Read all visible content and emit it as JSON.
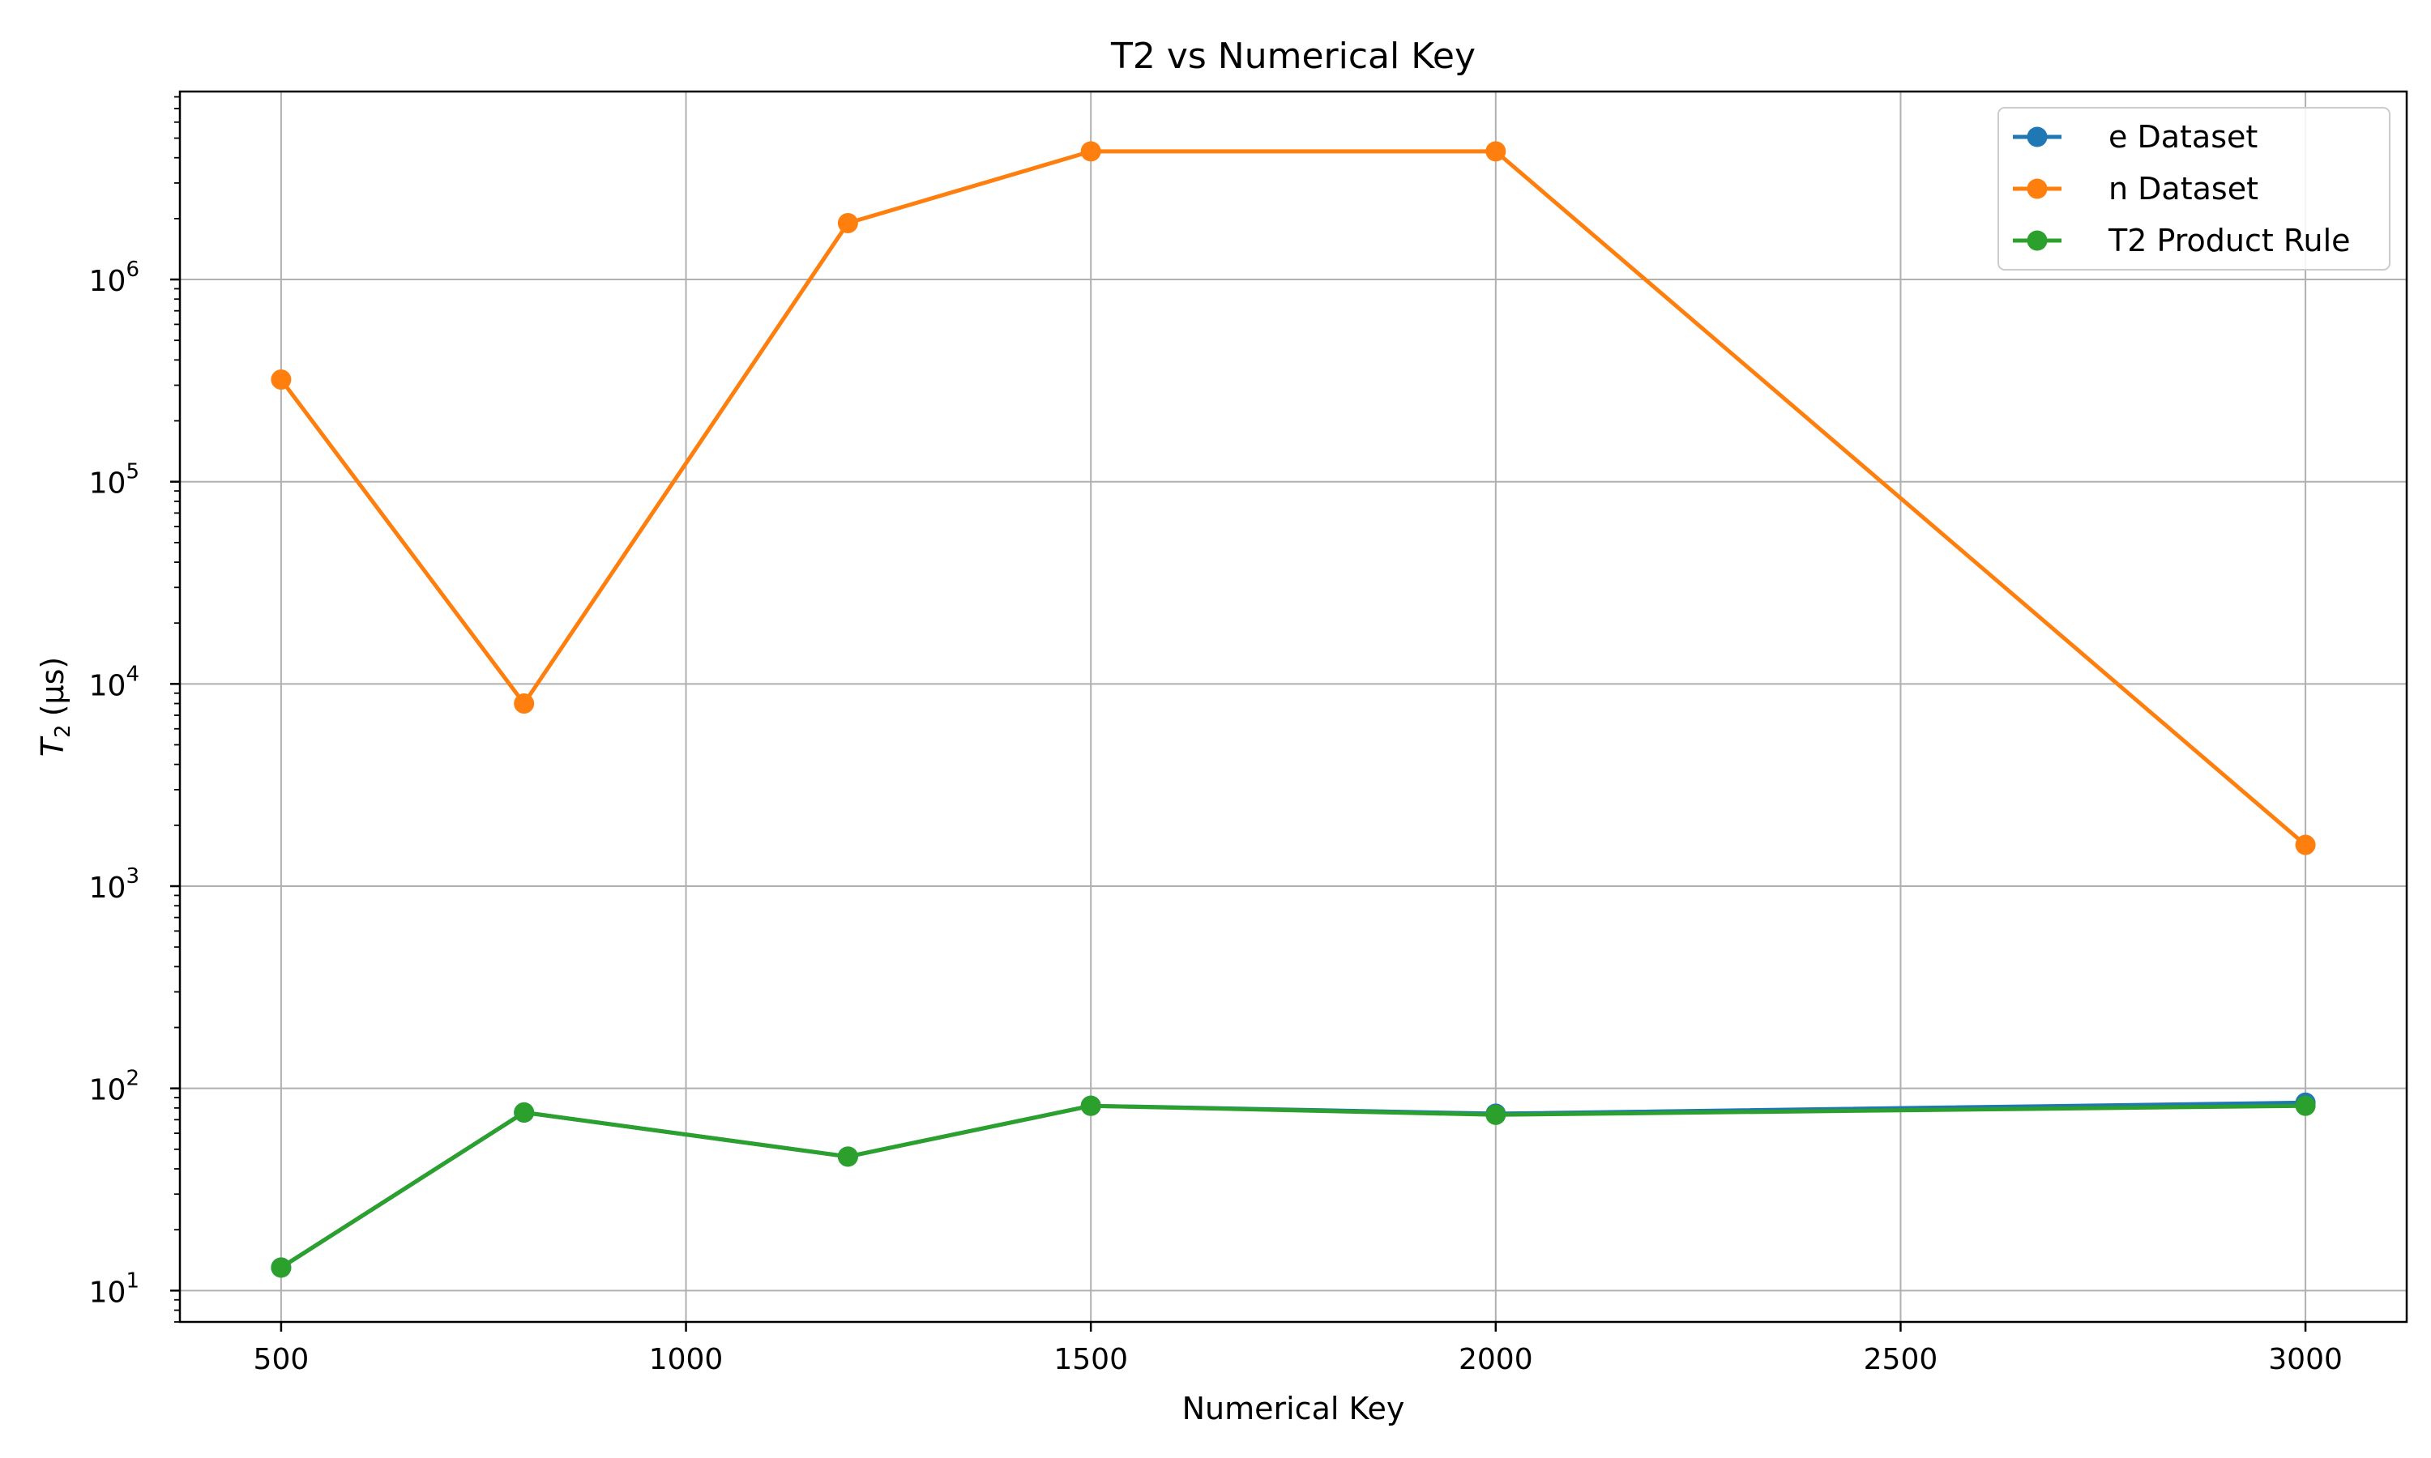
{
  "chart_data": {
    "type": "line",
    "title": "T2 vs Numerical Key",
    "xlabel": "Numerical Key",
    "ylabel": "T2 (μs)",
    "ylabel_parts": {
      "symbol": "T",
      "subscript": "2",
      "unit": "(μs)"
    },
    "yscale": "log",
    "xlim": [
      375,
      3125
    ],
    "ylim": [
      7,
      8500000
    ],
    "x_ticks": [
      500,
      1000,
      1500,
      2000,
      2500,
      3000
    ],
    "x_tick_labels": [
      "500",
      "1000",
      "1500",
      "2000",
      "2500",
      "3000"
    ],
    "y_ticks": [
      10,
      100,
      1000,
      10000,
      100000,
      1000000
    ],
    "y_tick_labels": [
      {
        "base": "10",
        "exp": "1"
      },
      {
        "base": "10",
        "exp": "2"
      },
      {
        "base": "10",
        "exp": "3"
      },
      {
        "base": "10",
        "exp": "4"
      },
      {
        "base": "10",
        "exp": "5"
      },
      {
        "base": "10",
        "exp": "6"
      }
    ],
    "grid": true,
    "legend_position": "top-right",
    "series": [
      {
        "name": "e Dataset",
        "color": "#1f77b4",
        "x": [
          500,
          800,
          1200,
          1500,
          2000,
          3000
        ],
        "y": [
          13,
          76,
          46,
          82,
          75,
          85
        ]
      },
      {
        "name": "n Dataset",
        "color": "#ff7f0e",
        "x": [
          500,
          800,
          1200,
          1500,
          2000,
          3000
        ],
        "y": [
          320000,
          8000,
          1900000,
          4300000,
          4300000,
          1600
        ]
      },
      {
        "name": "T2 Product Rule",
        "color": "#2ca02c",
        "x": [
          500,
          800,
          1200,
          1500,
          2000,
          3000
        ],
        "y": [
          13,
          76,
          46,
          82,
          74,
          82
        ]
      }
    ]
  }
}
